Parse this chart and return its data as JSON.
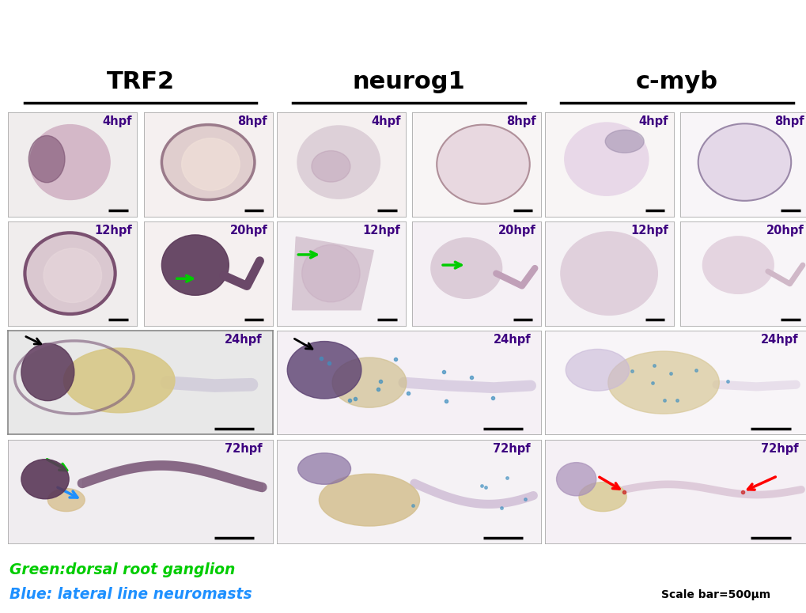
{
  "title_color": "#000000",
  "title_fontsize": 20,
  "label_color": "#3d0080",
  "label_fontsize": 10.5,
  "green_text": "Green:dorsal root ganglion",
  "blue_text": "Blue: lateral line neuromasts",
  "green_color": "#00CC00",
  "blue_color": "#1E90FF",
  "legend_fontsize": 13.5,
  "scalebar_text": "Scale bar=500μm",
  "scalebar_fontsize": 10,
  "background": "#ffffff",
  "col_labels": [
    "TRF2",
    "neurog1",
    "c-myb"
  ],
  "col_label_fontsize": 22,
  "embryo_base": "#e8d8d8",
  "embryo_dark": "#7a5c7a",
  "embryo_mid": "#c8a8c8",
  "yolk_color": "#d4c090",
  "panel_white": "#f8f5f5"
}
